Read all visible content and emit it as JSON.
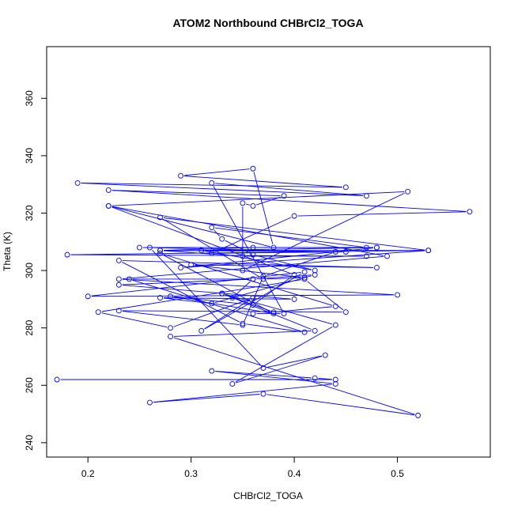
{
  "chart_data": {
    "type": "line",
    "title": "ATOM2 Northbound CHBrCl2_TOGA",
    "xlabel": "CHBrCl2_TOGA",
    "ylabel": "Theta (K)",
    "xlim": [
      0.16,
      0.59
    ],
    "ylim": [
      235,
      378
    ],
    "xticks": [
      0.2,
      0.3,
      0.4,
      0.5
    ],
    "yticks": [
      240,
      260,
      280,
      300,
      320,
      340,
      360
    ],
    "grid": false,
    "colors": {
      "series": "#0000ff",
      "axis": "#000000"
    },
    "marker": "open-circle",
    "series": [
      {
        "x": [
          0.17,
          0.44,
          0.42,
          0.32,
          0.44,
          0.26,
          0.37,
          0.52,
          0.28,
          0.42,
          0.33,
          0.44,
          0.34,
          0.43,
          0.37,
          0.26,
          0.44,
          0.37,
          0.35,
          0.23,
          0.45,
          0.41,
          0.21,
          0.28,
          0.36,
          0.31,
          0.41,
          0.2,
          0.5,
          0.23,
          0.49,
          0.22,
          0.4,
          0.36,
          0.28,
          0.38,
          0.27,
          0.44,
          0.38,
          0.33,
          0.34,
          0.36,
          0.23,
          0.4,
          0.27,
          0.32,
          0.42,
          0.36,
          0.24,
          0.41,
          0.35,
          0.23,
          0.48,
          0.3,
          0.41,
          0.37,
          0.27,
          0.53,
          0.18,
          0.47,
          0.35,
          0.27,
          0.53,
          0.29,
          0.48,
          0.25,
          0.47,
          0.32,
          0.33,
          0.36,
          0.42,
          0.31,
          0.48,
          0.36,
          0.27,
          0.45,
          0.32,
          0.4,
          0.57,
          0.22,
          0.39,
          0.36,
          0.35,
          0.35,
          0.51,
          0.22,
          0.38,
          0.36,
          0.29,
          0.45,
          0.19,
          0.47,
          0.32,
          0.39,
          0.36
        ],
        "y": [
          262,
          262,
          262.5,
          265,
          260.5,
          254,
          257,
          249.5,
          277,
          279,
          292,
          281,
          260.5,
          270.5,
          266,
          308,
          306.5,
          298,
          281,
          286,
          285.5,
          297,
          285.5,
          280,
          290.5,
          279,
          299.5,
          291,
          291.5,
          297,
          305,
          322.5,
          298.5,
          288,
          291,
          285,
          306,
          287.5,
          285.5,
          292,
          290.5,
          297,
          295,
          290,
          290.5,
          288.5,
          298.5,
          297,
          297,
          278.5,
          281.5,
          303.5,
          301,
          302,
          297.5,
          297,
          318.5,
          307,
          305.5,
          305,
          305,
          307,
          307,
          301,
          308,
          308,
          308,
          315,
          311,
          305.5,
          300,
          307,
          308,
          308,
          307,
          306.5,
          306,
          319,
          320.5,
          328,
          326,
          322.5,
          323.5,
          300,
          327.5,
          322.5,
          308,
          335.5,
          333,
          329,
          330.5,
          326,
          330.5,
          285,
          285
        ]
      }
    ]
  }
}
